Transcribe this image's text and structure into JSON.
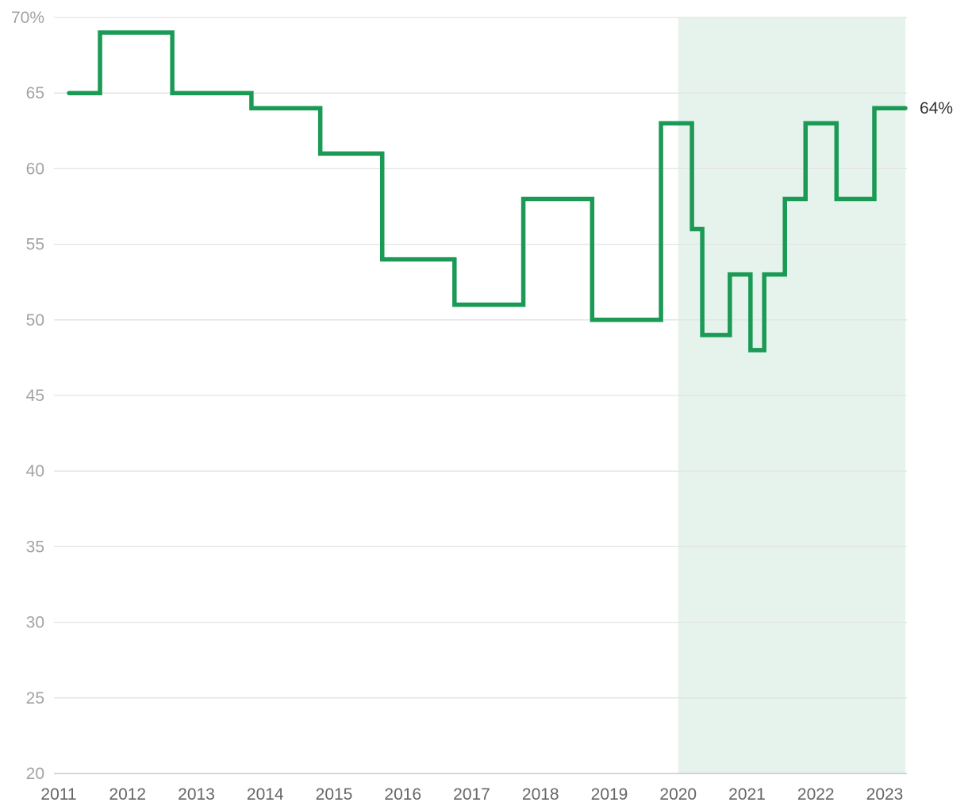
{
  "chart_data": {
    "type": "line",
    "step": true,
    "title": "",
    "xlabel": "",
    "ylabel": "",
    "ylim": [
      20,
      70
    ],
    "xlim": [
      2011.0,
      2023.4
    ],
    "y_ticks": [
      20,
      25,
      30,
      35,
      40,
      45,
      50,
      55,
      60,
      65,
      70
    ],
    "y_tick_labels": [
      "20",
      "25",
      "30",
      "35",
      "40",
      "45",
      "50",
      "55",
      "60",
      "65",
      "70%"
    ],
    "x_ticks": [
      2011,
      2012,
      2013,
      2014,
      2015,
      2016,
      2017,
      2018,
      2019,
      2020,
      2021,
      2022,
      2023
    ],
    "grid": "horizontal",
    "shaded_region": {
      "x_start": 2020.0,
      "x_end": 2023.3,
      "color": "#e6f3ec"
    },
    "series": [
      {
        "color": "#1a9a55",
        "points": [
          {
            "x": 2011.15,
            "y": 65
          },
          {
            "x": 2011.6,
            "y": 69
          },
          {
            "x": 2012.65,
            "y": 65
          },
          {
            "x": 2013.8,
            "y": 64
          },
          {
            "x": 2014.8,
            "y": 61
          },
          {
            "x": 2015.7,
            "y": 54
          },
          {
            "x": 2016.75,
            "y": 51
          },
          {
            "x": 2017.75,
            "y": 58
          },
          {
            "x": 2018.75,
            "y": 50
          },
          {
            "x": 2019.75,
            "y": 63
          },
          {
            "x": 2020.2,
            "y": 56
          },
          {
            "x": 2020.35,
            "y": 49
          },
          {
            "x": 2020.75,
            "y": 53
          },
          {
            "x": 2021.05,
            "y": 48
          },
          {
            "x": 2021.25,
            "y": 53
          },
          {
            "x": 2021.55,
            "y": 58
          },
          {
            "x": 2021.85,
            "y": 63
          },
          {
            "x": 2022.3,
            "y": 58
          },
          {
            "x": 2022.85,
            "y": 64
          }
        ],
        "end_x": 2023.3
      }
    ],
    "end_label": "64%"
  }
}
